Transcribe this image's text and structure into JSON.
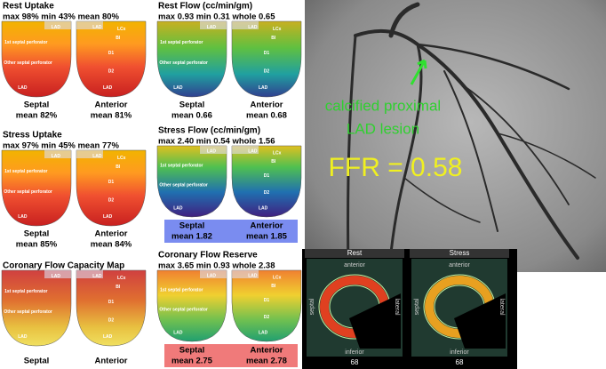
{
  "panels": [
    {
      "title": "Rest Uptake",
      "stats": "max 98%  min 43%  mean 80%",
      "septal": "Septal",
      "septal_mean": "mean 82%",
      "anterior": "Anterior",
      "anterior_mean": "mean 81%"
    },
    {
      "title": "Rest Flow (cc/min/gm)",
      "stats": "max 0.93  min 0.31  whole 0.65",
      "septal": "Septal",
      "septal_mean": "mean 0.66",
      "anterior": "Anterior",
      "anterior_mean": "mean 0.68"
    },
    {
      "title": "Stress Uptake",
      "stats": "max 97%  min 45%  mean 77%",
      "septal": "Septal",
      "septal_mean": "mean 85%",
      "anterior": "Anterior",
      "anterior_mean": "mean 84%"
    },
    {
      "title": "Stress Flow (cc/min/gm)",
      "stats": "max 2.40  min 0.54  whole 1.56",
      "septal": "Septal",
      "septal_mean": "mean 1.82",
      "anterior": "Anterior",
      "anterior_mean": "mean 1.85"
    },
    {
      "title": "Coronary Flow Capacity Map",
      "septal": "Septal",
      "anterior": "Anterior"
    },
    {
      "title": "Coronary Flow Reserve",
      "stats": "max 3.65  min 0.93  whole 2.38",
      "septal": "Septal",
      "septal_mean": "mean 2.75",
      "anterior": "Anterior",
      "anterior_mean": "mean 2.78"
    }
  ],
  "map_labels": {
    "septal_side": [
      "LAD",
      "1st septal perforator",
      "Other septal perforator",
      "LAD"
    ],
    "anterior_side": [
      "LAD",
      "LCx",
      "BI",
      "D1",
      "D2",
      "LAD"
    ]
  },
  "angiogram": {
    "annotation": [
      "calcified proximal",
      "LAD lesion"
    ],
    "ffr": "FFR = 0.58"
  },
  "pet": [
    {
      "title": "Rest",
      "anterior": "anterior",
      "septal": "septal",
      "lateral": "lateral",
      "inferior": "inferior",
      "slice": "68"
    },
    {
      "title": "Stress",
      "anterior": "anterior",
      "septal": "septal",
      "lateral": "lateral",
      "inferior": "inferior",
      "slice": "68"
    }
  ]
}
